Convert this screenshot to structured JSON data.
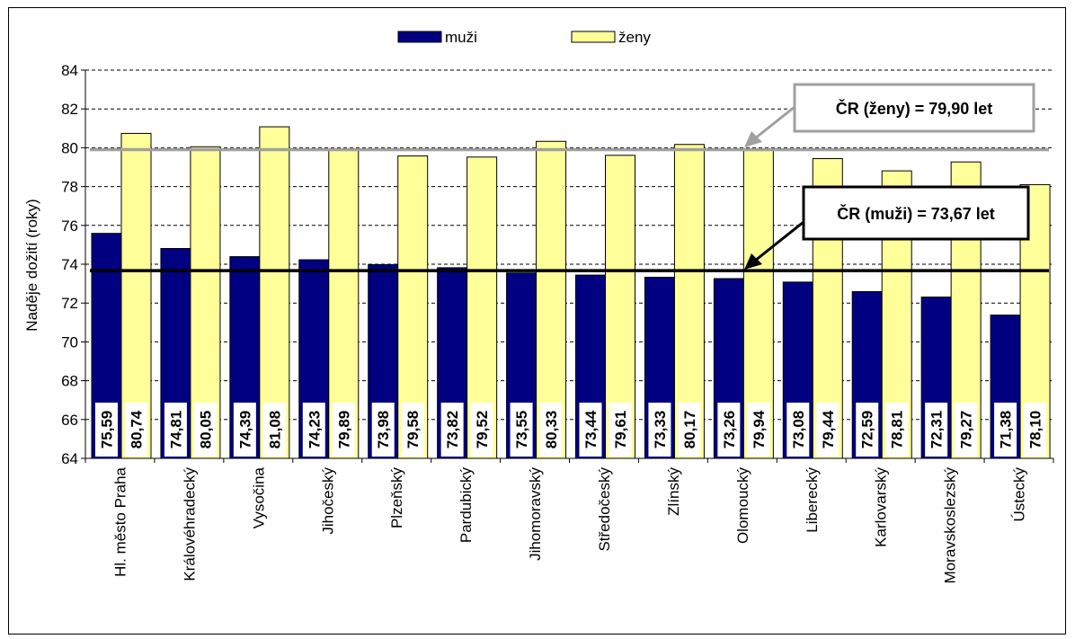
{
  "chart_data": {
    "type": "bar",
    "title": "",
    "xlabel": "",
    "ylabel": "Naděje dožití (roky)",
    "ylim": [
      64,
      84
    ],
    "yticks": [
      64,
      66,
      68,
      70,
      72,
      74,
      76,
      78,
      80,
      82,
      84
    ],
    "grid": "horizontal dashed",
    "legend_position": "top-center",
    "categories": [
      "Hl. město Praha",
      "Královéhradecký",
      "Vysočina",
      "Jihočeský",
      "Plzeňský",
      "Pardubický",
      "Jihomoravský",
      "Středočeský",
      "Zlínský",
      "Olomoucký",
      "Liberecký",
      "Karlovarský",
      "Moravskoslezský",
      "Ústecký"
    ],
    "series": [
      {
        "name": "muži",
        "color": "#000080",
        "values": [
          75.59,
          74.81,
          74.39,
          74.23,
          73.98,
          73.82,
          73.55,
          73.44,
          73.33,
          73.26,
          73.08,
          72.59,
          72.31,
          71.38
        ],
        "labels": [
          "75,59",
          "74,81",
          "74,39",
          "74,23",
          "73,98",
          "73,82",
          "73,55",
          "73,44",
          "73,33",
          "73,26",
          "73,08",
          "72,59",
          "72,31",
          "71,38"
        ]
      },
      {
        "name": "ženy",
        "color": "#FFFF99",
        "values": [
          80.74,
          80.05,
          81.08,
          79.89,
          79.58,
          79.52,
          80.33,
          79.61,
          80.17,
          79.94,
          79.44,
          78.81,
          79.27,
          78.1
        ],
        "labels": [
          "80,74",
          "80,05",
          "81,08",
          "79,89",
          "79,58",
          "79,52",
          "80,33",
          "79,61",
          "80,17",
          "79,94",
          "79,44",
          "78,81",
          "79,27",
          "78,10"
        ]
      }
    ],
    "reference_lines": [
      {
        "value": 79.9,
        "label": "ČR (ženy) = 79,90 let",
        "color": "#A0A0A0"
      },
      {
        "value": 73.67,
        "label": "ČR (muži) = 73,67 let",
        "color": "#000000"
      }
    ]
  }
}
